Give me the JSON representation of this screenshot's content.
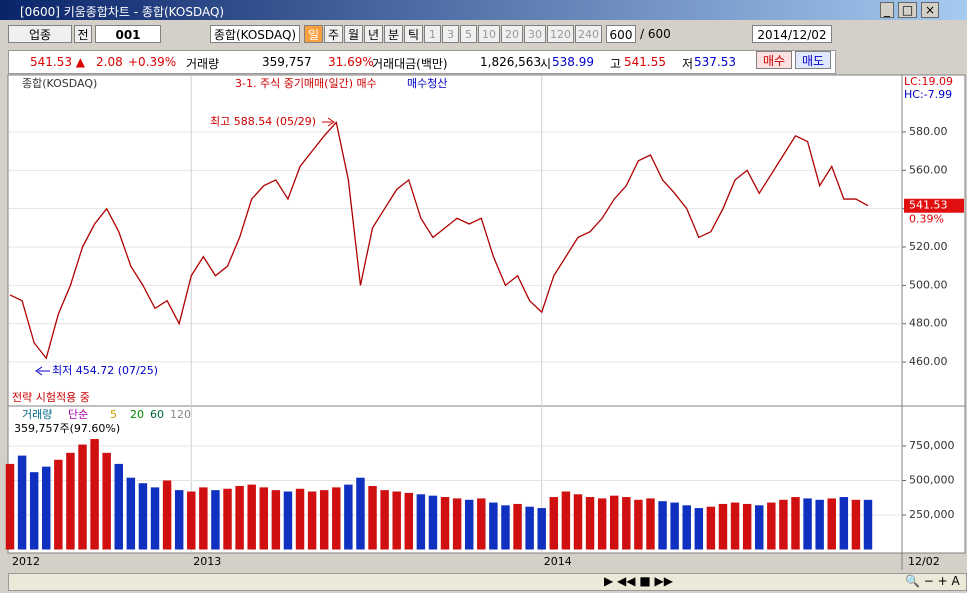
{
  "window_title": "[0600] 키움종합차트 - 종합(KOSDAQ)",
  "toolbar": {
    "market": "업종",
    "prev": "전",
    "code": "001",
    "name": "종합(KOSDAQ)",
    "periods": [
      "일",
      "주",
      "월",
      "년",
      "분",
      "틱"
    ],
    "intervals": [
      "1",
      "3",
      "5",
      "10",
      "20",
      "30",
      "120",
      "240"
    ],
    "count": "600",
    "count_max": "/ 600",
    "date": "2014/12/02"
  },
  "info": {
    "price": "541.53 ▲",
    "change": "2.08",
    "change_pct": "+0.39%",
    "volume_label": "거래량",
    "volume": "359,757",
    "volume_pct": "31.69%",
    "amount_label": "거래대금(백만)",
    "amount": "1,826,563",
    "open_label": "시",
    "open": "538.99",
    "high_label": "고",
    "high": "541.55",
    "low_label": "저",
    "low": "537.53",
    "buy": "매수",
    "sell": "매도"
  },
  "strategy": {
    "name": "3-1. 주식 중기매매(일간) 매수",
    "exit": "매수청산",
    "status": "전략 시험적용 중"
  },
  "lc": "LC:19.09",
  "hc": "HC:-7.99",
  "current_price_label": "541.53",
  "current_pct_label": "0.39%",
  "high_note": "최고 588.54 (05/29)",
  "low_note": "최저 454.72 (07/25)",
  "volume_legend": {
    "label": "거래량",
    "ma": "단순",
    "periods": [
      "5",
      "20",
      "60",
      "120"
    ],
    "current": "359,757주(97.60%)"
  },
  "end_date": "12/02",
  "chart_data": [
    {
      "type": "line",
      "title": "종합(KOSDAQ)",
      "color": "#b00000",
      "grid": true,
      "categories": [
        null,
        null,
        null,
        null,
        null,
        null,
        null,
        null,
        null,
        null,
        null,
        null,
        null,
        null,
        null,
        null,
        null,
        null,
        null,
        null,
        null,
        null,
        null,
        null,
        null,
        null,
        null,
        null,
        null,
        null,
        null,
        null,
        null,
        null,
        null,
        null,
        null,
        null,
        null,
        null,
        null,
        null,
        null,
        null,
        null,
        null,
        null,
        null,
        null,
        null,
        null,
        null,
        null,
        null,
        null,
        null,
        null,
        null,
        null,
        null,
        null,
        null,
        null,
        null,
        null,
        null,
        null,
        null,
        null,
        null,
        null,
        null
      ],
      "values": [
        495,
        492,
        470,
        462,
        485,
        500,
        520,
        532,
        540,
        528,
        510,
        500,
        488,
        492,
        480,
        505,
        515,
        505,
        510,
        525,
        545,
        552,
        555,
        545,
        562,
        570,
        578,
        585,
        555,
        500,
        530,
        540,
        550,
        555,
        535,
        525,
        530,
        535,
        532,
        535,
        515,
        500,
        505,
        492,
        486,
        505,
        515,
        525,
        528,
        535,
        545,
        552,
        565,
        568,
        555,
        548,
        540,
        525,
        528,
        540,
        555,
        560,
        548,
        558,
        568,
        578,
        575,
        552,
        562,
        545,
        545,
        541.53
      ],
      "ylim": [
        437.6,
        609.2
      ],
      "yticks": [
        {
          "value": 460,
          "label": "460.00"
        },
        {
          "value": 480,
          "label": "480.00"
        },
        {
          "value": 500,
          "label": "500.00"
        },
        {
          "value": 520,
          "label": "520.00"
        },
        {
          "value": 540,
          "label": "540.00"
        },
        {
          "value": 560,
          "label": "560.00"
        },
        {
          "value": 580,
          "label": "580.00"
        }
      ],
      "xticks": [
        {
          "value": 0,
          "label": "2012"
        },
        {
          "value": 15,
          "label": "2013"
        },
        {
          "value": 44,
          "label": "2014"
        }
      ]
    },
    {
      "type": "bar",
      "title": "거래량",
      "up_color": "#d01010",
      "down_color": "#1030c0",
      "grid": true,
      "categories": [
        null,
        null,
        null,
        null,
        null,
        null,
        null,
        null,
        null,
        null,
        null,
        null,
        null,
        null,
        null,
        null,
        null,
        null,
        null,
        null,
        null,
        null,
        null,
        null,
        null,
        null,
        null,
        null,
        null,
        null,
        null,
        null,
        null,
        null,
        null,
        null,
        null,
        null,
        null,
        null,
        null,
        null,
        null,
        null,
        null,
        null,
        null,
        null,
        null,
        null,
        null,
        null,
        null,
        null,
        null,
        null,
        null,
        null,
        null,
        null,
        null,
        null,
        null,
        null,
        null,
        null,
        null,
        null,
        null,
        null,
        null,
        null
      ],
      "values": [
        620000,
        680000,
        560000,
        600000,
        650000,
        700000,
        760000,
        800000,
        700000,
        620000,
        520000,
        480000,
        450000,
        500000,
        430000,
        420000,
        450000,
        430000,
        440000,
        460000,
        470000,
        450000,
        430000,
        420000,
        440000,
        420000,
        430000,
        450000,
        470000,
        520000,
        460000,
        430000,
        420000,
        410000,
        400000,
        390000,
        380000,
        370000,
        360000,
        370000,
        340000,
        320000,
        330000,
        310000,
        300000,
        380000,
        420000,
        400000,
        380000,
        370000,
        390000,
        380000,
        360000,
        370000,
        350000,
        340000,
        320000,
        300000,
        310000,
        330000,
        340000,
        330000,
        320000,
        340000,
        360000,
        380000,
        370000,
        360000,
        370000,
        380000,
        360000,
        359757
      ],
      "ylim": [
        -18000,
        1032000
      ],
      "yticks": [
        {
          "value": 250000,
          "label": "250,000"
        },
        {
          "value": 500000,
          "label": "500,000"
        },
        {
          "value": 750000,
          "label": "750,000"
        }
      ]
    }
  ]
}
